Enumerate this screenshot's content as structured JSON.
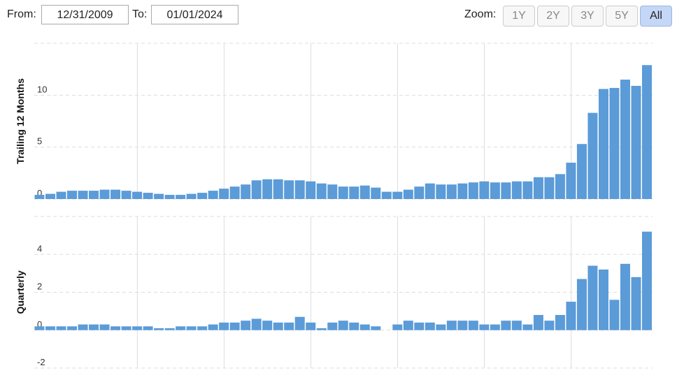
{
  "controls": {
    "from_label": "From:",
    "from_value": "12/31/2009",
    "to_label": "To:",
    "to_value": "01/01/2024",
    "zoom_label": "Zoom:",
    "zoom_buttons": [
      "1Y",
      "2Y",
      "3Y",
      "5Y",
      "All"
    ],
    "zoom_active": "All"
  },
  "chart_data": [
    {
      "type": "bar",
      "y_label": "Trailing 12 Months",
      "color": "#5b9bd8",
      "grid": true,
      "ylim": [
        0,
        15
      ],
      "yticks": [
        0,
        5,
        10
      ],
      "values": [
        0.4,
        0.5,
        0.7,
        0.8,
        0.8,
        0.8,
        0.9,
        0.9,
        0.8,
        0.7,
        0.6,
        0.5,
        0.4,
        0.4,
        0.5,
        0.6,
        0.8,
        1.0,
        1.2,
        1.4,
        1.8,
        1.9,
        1.9,
        1.8,
        1.8,
        1.7,
        1.5,
        1.4,
        1.2,
        1.2,
        1.3,
        1.1,
        0.7,
        0.7,
        0.9,
        1.2,
        1.5,
        1.4,
        1.4,
        1.5,
        1.6,
        1.7,
        1.6,
        1.6,
        1.7,
        1.7,
        2.1,
        2.1,
        2.4,
        3.5,
        5.3,
        8.3,
        10.6,
        10.7,
        11.5,
        10.9,
        12.9
      ]
    },
    {
      "type": "bar",
      "y_label": "Quarterly",
      "color": "#5b9bd8",
      "grid": true,
      "ylim": [
        -2,
        6
      ],
      "yticks": [
        -2,
        0,
        2,
        4
      ],
      "values": [
        0.2,
        0.2,
        0.2,
        0.2,
        0.3,
        0.3,
        0.3,
        0.2,
        0.2,
        0.2,
        0.2,
        0.1,
        0.1,
        0.2,
        0.2,
        0.2,
        0.3,
        0.4,
        0.4,
        0.5,
        0.6,
        0.5,
        0.4,
        0.4,
        0.7,
        0.4,
        0.1,
        0.4,
        0.5,
        0.4,
        0.3,
        0.2,
        0.0,
        0.3,
        0.5,
        0.4,
        0.4,
        0.3,
        0.5,
        0.5,
        0.5,
        0.3,
        0.3,
        0.5,
        0.5,
        0.3,
        0.8,
        0.5,
        0.8,
        1.5,
        2.7,
        3.4,
        3.2,
        1.6,
        3.5,
        2.8,
        5.2
      ]
    }
  ]
}
